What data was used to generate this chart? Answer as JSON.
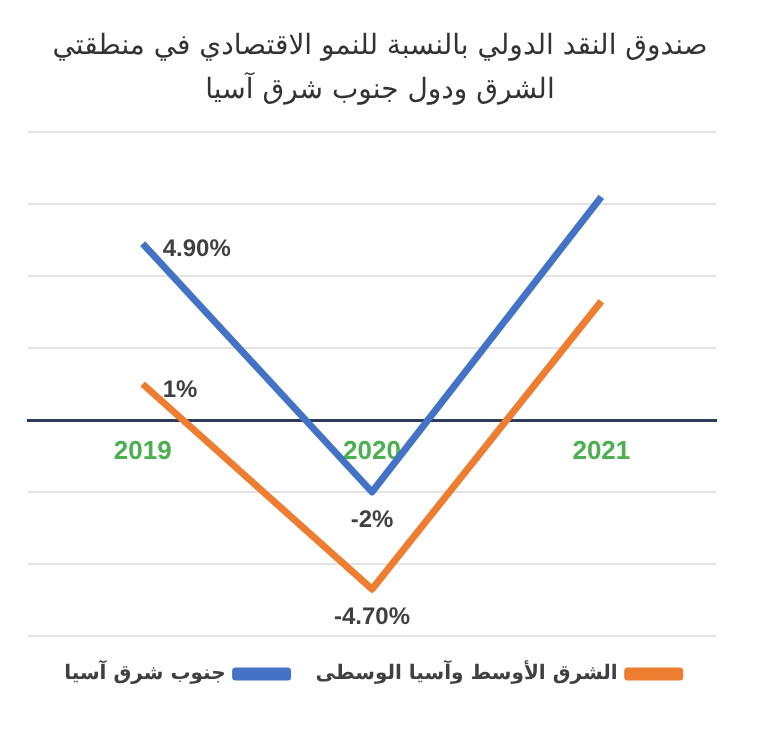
{
  "chart_data": {
    "type": "line",
    "title": "صندوق النقد الدولي بالنسبة للنمو الاقتصادي في منطقتي الشرق ودول جنوب شرق آسيا",
    "categories": [
      "2019",
      "2020",
      "2021"
    ],
    "series": [
      {
        "name": "الشرق الأوسط وآسيا الوسطى",
        "color": "#ed7d31",
        "values": [
          1,
          -4.7,
          3.3
        ],
        "value_labels": [
          "1%",
          "-4.70%",
          null
        ]
      },
      {
        "name": "جنوب شرق آسيا",
        "color": "#4472c4",
        "values": [
          4.9,
          -2,
          6.2
        ],
        "value_labels": [
          "4.90%",
          "-2%",
          null
        ]
      }
    ],
    "ylim": [
      -6,
      8
    ],
    "yticks": [
      {
        "value": -6,
        "label": null
      },
      {
        "value": -4,
        "label": null
      },
      {
        "value": -2,
        "label": null
      },
      {
        "value": 0,
        "label": null
      },
      {
        "value": 2,
        "label": null
      },
      {
        "value": 4,
        "label": null
      },
      {
        "value": 6,
        "label": null
      },
      {
        "value": 8,
        "label": null
      }
    ],
    "grid": "y",
    "legend": "bottom",
    "marker": "none",
    "line_style": "solid",
    "tick_labels": "x"
  }
}
